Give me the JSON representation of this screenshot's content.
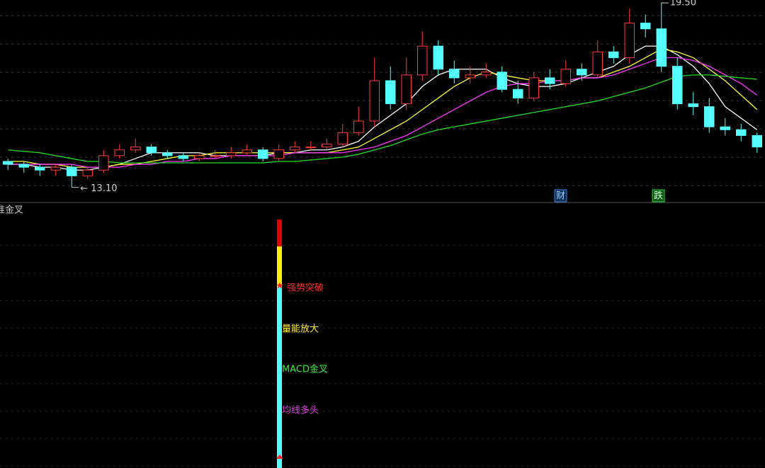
{
  "chart_data": {
    "type": "candlestick",
    "categories": [
      null,
      null,
      null,
      null,
      null,
      null,
      null,
      null,
      null,
      null,
      null,
      null,
      null,
      null,
      null,
      null,
      null,
      null,
      null,
      null,
      null,
      null,
      null,
      null,
      null,
      null,
      null,
      null,
      null,
      null,
      null,
      null,
      null,
      null,
      null,
      null,
      null,
      null,
      null,
      null,
      null,
      null,
      null,
      null,
      null,
      null,
      null,
      null
    ],
    "open": [
      14.0,
      13.9,
      13.8,
      13.7,
      13.8,
      13.5,
      13.7,
      14.2,
      14.4,
      14.5,
      14.3,
      14.2,
      14.1,
      14.2,
      14.2,
      14.3,
      14.4,
      14.1,
      14.4,
      14.5,
      14.5,
      14.6,
      15.0,
      15.4,
      16.8,
      16.0,
      17.0,
      18.0,
      17.2,
      16.9,
      17.0,
      17.1,
      16.5,
      16.2,
      16.9,
      16.7,
      17.2,
      17.0,
      17.8,
      17.6,
      18.8,
      18.6,
      17.3,
      16.0,
      15.9,
      15.2,
      15.1,
      14.9
    ],
    "high": [
      14.1,
      14.0,
      13.9,
      13.9,
      13.9,
      13.8,
      14.4,
      14.6,
      14.8,
      14.6,
      14.4,
      14.3,
      14.3,
      14.4,
      14.5,
      14.6,
      14.5,
      14.6,
      14.7,
      14.7,
      14.8,
      15.3,
      15.9,
      17.6,
      17.3,
      17.6,
      18.5,
      18.2,
      17.5,
      17.3,
      17.4,
      17.3,
      16.8,
      17.1,
      17.2,
      17.5,
      17.4,
      18.2,
      18.0,
      19.3,
      19.1,
      19.5,
      17.6,
      16.4,
      16.2,
      15.5,
      15.3,
      15.0
    ],
    "low": [
      13.7,
      13.6,
      13.5,
      13.5,
      13.1,
      13.4,
      13.6,
      14.1,
      14.3,
      14.2,
      14.1,
      14.0,
      14.0,
      14.1,
      14.1,
      14.2,
      14.0,
      14.0,
      14.3,
      14.4,
      14.4,
      14.5,
      14.9,
      15.2,
      15.8,
      15.8,
      16.8,
      17.0,
      16.7,
      16.7,
      16.9,
      16.4,
      16.0,
      16.1,
      16.5,
      16.6,
      16.8,
      16.9,
      17.4,
      17.4,
      18.3,
      17.1,
      15.8,
      15.6,
      15.0,
      14.9,
      14.7,
      14.3
    ],
    "close": [
      13.9,
      13.8,
      13.7,
      13.8,
      13.5,
      13.7,
      14.2,
      14.4,
      14.5,
      14.3,
      14.2,
      14.1,
      14.2,
      14.2,
      14.3,
      14.4,
      14.1,
      14.4,
      14.5,
      14.5,
      14.6,
      15.0,
      15.4,
      16.8,
      16.0,
      17.0,
      18.0,
      17.2,
      16.9,
      17.0,
      17.1,
      16.5,
      16.2,
      16.9,
      16.7,
      17.2,
      17.0,
      17.8,
      17.6,
      18.8,
      18.6,
      17.3,
      16.0,
      15.9,
      15.2,
      15.1,
      14.9,
      14.5
    ],
    "up_color": "#ff3a3a",
    "down_color": "#54ffff",
    "series": [
      {
        "color": "#ffffff",
        "values": [
          13.9,
          13.9,
          13.8,
          13.8,
          13.7,
          13.7,
          13.8,
          13.9,
          14.1,
          14.3,
          14.3,
          14.3,
          14.3,
          14.2,
          14.2,
          14.2,
          14.2,
          14.3,
          14.3,
          14.4,
          14.4,
          14.5,
          14.7,
          15.2,
          15.6,
          16.0,
          16.6,
          17.0,
          17.2,
          17.2,
          17.2,
          16.9,
          16.7,
          16.6,
          16.6,
          16.7,
          16.9,
          17.1,
          17.3,
          17.7,
          18.0,
          18.0,
          17.7,
          17.3,
          16.7,
          15.9,
          15.5,
          15.1
        ]
      },
      {
        "color": "#ffff33",
        "values": [
          14.0,
          14.0,
          13.9,
          13.9,
          13.8,
          13.8,
          13.8,
          13.9,
          13.9,
          14.0,
          14.1,
          14.2,
          14.2,
          14.3,
          14.3,
          14.3,
          14.3,
          14.3,
          14.3,
          14.3,
          14.3,
          14.4,
          14.5,
          14.8,
          15.1,
          15.4,
          15.8,
          16.2,
          16.6,
          16.9,
          17.1,
          17.0,
          16.9,
          16.8,
          16.8,
          16.8,
          16.9,
          16.9,
          17.1,
          17.3,
          17.6,
          17.9,
          17.8,
          17.6,
          17.2,
          16.8,
          16.3,
          15.8
        ]
      },
      {
        "color": "#ff33ff",
        "values": [
          13.9,
          13.9,
          13.9,
          13.9,
          13.9,
          13.8,
          13.8,
          13.8,
          13.9,
          13.9,
          14.0,
          14.0,
          14.1,
          14.1,
          14.2,
          14.2,
          14.2,
          14.2,
          14.3,
          14.3,
          14.3,
          14.3,
          14.4,
          14.5,
          14.7,
          14.9,
          15.2,
          15.5,
          15.8,
          16.1,
          16.4,
          16.6,
          16.7,
          16.7,
          16.8,
          16.8,
          16.9,
          16.9,
          17.0,
          17.2,
          17.4,
          17.6,
          17.6,
          17.5,
          17.3,
          17.0,
          16.7,
          16.3
        ]
      },
      {
        "color": "#22dd22",
        "values": [
          14.4,
          14.35,
          14.3,
          14.2,
          14.1,
          14.0,
          14.0,
          13.95,
          13.95,
          13.95,
          13.95,
          13.95,
          13.95,
          13.95,
          13.95,
          13.95,
          13.95,
          14.0,
          14.0,
          14.05,
          14.1,
          14.15,
          14.25,
          14.4,
          14.55,
          14.75,
          14.95,
          15.1,
          15.2,
          15.3,
          15.4,
          15.5,
          15.6,
          15.7,
          15.8,
          15.9,
          16.0,
          16.1,
          16.25,
          16.4,
          16.55,
          16.75,
          16.95,
          17.0,
          17.0,
          16.95,
          16.9,
          16.85
        ]
      }
    ],
    "ylim": [
      12.6,
      19.6
    ],
    "annotations": [
      {
        "text": "19.50",
        "value": 19.5,
        "index": 41
      },
      {
        "text": "← 13.10",
        "value": 13.1,
        "index": 4
      }
    ]
  },
  "markers": [
    "财",
    "跌"
  ],
  "indicator": {
    "title": "准金叉",
    "labels": [
      "强势突破",
      "量能放大",
      "MACD金叉",
      "均线多头"
    ]
  }
}
